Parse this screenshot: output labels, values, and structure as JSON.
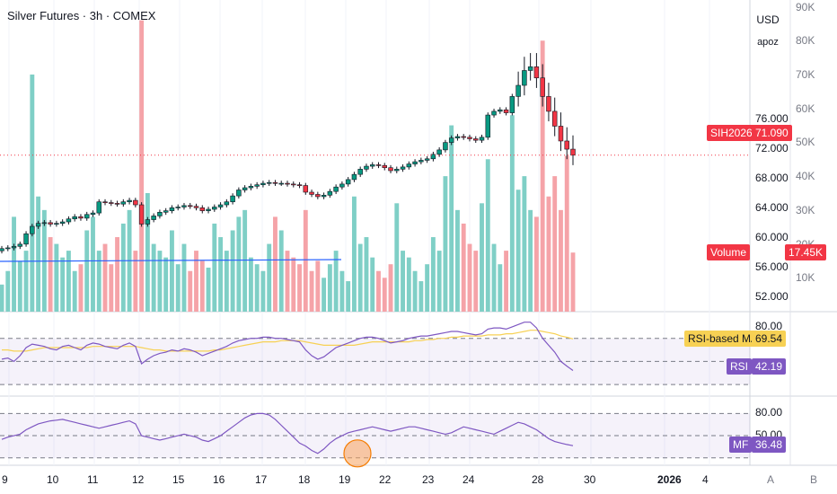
{
  "chart_title": "Silver Futures · 3h · COMEX",
  "currency_label": "USD",
  "scale_label": "apoz",
  "symbol_tag": "SIH2026",
  "last_price": "71.090",
  "volume_tag": "Volume",
  "volume_value": "17.45K",
  "rsi_ma_tag": "RSI-based MA",
  "rsi_ma_value": "69.54",
  "rsi_tag": "RSI",
  "rsi_value": "42.19",
  "mf_tag": "MF",
  "mf_value": "36.48",
  "price_ticks": [
    "76.000",
    "72.000",
    "68.000",
    "64.000",
    "60.000",
    "56.000",
    "52.000"
  ],
  "volume_ticks": [
    "90K",
    "80K",
    "70K",
    "60K",
    "50K",
    "40K",
    "30K",
    "20K",
    "10K"
  ],
  "rsi_ticks": [
    "80.00"
  ],
  "mf_ticks": [
    "80.00",
    "50.00"
  ],
  "x_ticks": [
    "9",
    "10",
    "11",
    "12",
    "15",
    "16",
    "17",
    "18",
    "19",
    "22",
    "23",
    "24",
    "28",
    "30",
    "2026",
    "4"
  ],
  "axis_buttons": [
    "A",
    "B"
  ],
  "colors": {
    "up": "#089981",
    "down": "#f23645",
    "up_vol": "#7fcfc6",
    "down_vol": "#f5a3a8",
    "rsi": "#7e57c2",
    "rsi_ma": "#f7d154",
    "trend": "#2962ff",
    "price_line": "#f23645"
  },
  "chart_data": {
    "type": "candlestick",
    "price_ylim": [
      50,
      92
    ],
    "volume_ylim": [
      0,
      92000
    ],
    "candles_close": [
      58.5,
      58.6,
      58.8,
      59.1,
      60.5,
      61.5,
      61.9,
      62.0,
      61.8,
      61.9,
      62.1,
      62.5,
      62.8,
      62.6,
      63.1,
      63.3,
      64.8,
      64.7,
      64.6,
      64.5,
      64.8,
      65.0,
      64.4,
      61.8,
      62.4,
      62.9,
      63.4,
      63.6,
      64.0,
      64.1,
      64.3,
      64.2,
      64.0,
      63.6,
      63.8,
      64.1,
      64.4,
      64.8,
      65.6,
      66.4,
      66.7,
      66.9,
      67.1,
      67.3,
      67.4,
      67.3,
      67.3,
      67.2,
      67.1,
      67.0,
      66.1,
      65.8,
      65.5,
      65.7,
      66.2,
      66.8,
      67.2,
      67.8,
      68.5,
      69.2,
      69.6,
      69.8,
      69.7,
      69.4,
      69.0,
      69.2,
      69.5,
      69.9,
      70.2,
      70.4,
      70.6,
      71.2,
      71.8,
      72.8,
      73.4,
      73.6,
      73.5,
      73.3,
      73.1,
      73.5,
      76.5,
      77.0,
      77.2,
      76.8,
      79.0,
      80.5,
      82.5,
      83.0,
      81.5,
      79.0,
      77.0,
      75.0,
      73.0,
      71.9,
      71.09
    ],
    "volume": [
      8000,
      12000,
      28000,
      15000,
      18000,
      70000,
      34000,
      30000,
      22000,
      20000,
      16000,
      18000,
      12000,
      14000,
      24000,
      28000,
      18000,
      20000,
      14000,
      22000,
      26000,
      30000,
      18000,
      86000,
      35000,
      20000,
      18000,
      16000,
      24000,
      14000,
      20000,
      12000,
      18000,
      15000,
      13000,
      26000,
      22000,
      18000,
      24000,
      28000,
      30000,
      16000,
      14000,
      12000,
      20000,
      28000,
      24000,
      18000,
      16000,
      14000,
      30000,
      12000,
      15000,
      10000,
      14000,
      18000,
      12000,
      9000,
      34000,
      20000,
      22000,
      16000,
      12000,
      10000,
      14000,
      32000,
      18000,
      16000,
      12000,
      9000,
      14000,
      22000,
      18000,
      40000,
      55000,
      30000,
      26000,
      20000,
      18000,
      32000,
      45000,
      20000,
      14000,
      18000,
      58000,
      36000,
      40000,
      30000,
      28000,
      80000,
      34000,
      40000,
      30000,
      46000,
      17450
    ],
    "rsi": [
      52,
      53,
      50,
      55,
      62,
      65,
      64,
      63,
      61,
      60,
      63,
      64,
      62,
      60,
      64,
      66,
      65,
      63,
      62,
      61,
      64,
      66,
      63,
      48,
      52,
      55,
      57,
      58,
      60,
      59,
      61,
      60,
      58,
      55,
      57,
      59,
      61,
      63,
      66,
      68,
      69,
      70,
      70,
      71,
      71,
      70,
      70,
      69,
      68,
      67,
      60,
      55,
      52,
      54,
      58,
      62,
      64,
      66,
      68,
      70,
      71,
      71,
      70,
      68,
      66,
      67,
      68,
      70,
      71,
      72,
      72,
      73,
      74,
      75,
      76,
      76,
      75,
      74,
      73,
      74,
      78,
      79,
      79,
      78,
      80,
      82,
      84,
      84,
      79,
      70,
      64,
      58,
      50,
      46,
      42.19
    ],
    "rsi_ma": [
      60,
      60,
      59,
      59,
      59,
      60,
      61,
      62,
      62,
      62,
      62,
      62,
      62,
      62,
      62,
      63,
      63,
      63,
      63,
      63,
      63,
      63,
      63,
      62,
      61,
      60,
      60,
      59,
      59,
      59,
      59,
      59,
      59,
      59,
      59,
      60,
      60,
      61,
      62,
      63,
      64,
      65,
      66,
      67,
      67,
      67,
      68,
      68,
      68,
      68,
      67,
      66,
      65,
      64,
      64,
      64,
      64,
      64,
      64,
      65,
      66,
      67,
      67,
      67,
      67,
      67,
      67,
      67,
      68,
      68,
      69,
      69,
      70,
      70,
      71,
      71,
      72,
      72,
      72,
      72,
      73,
      73,
      73,
      74,
      74,
      75,
      76,
      77,
      77,
      76,
      75,
      74,
      72,
      71,
      69.54
    ],
    "mf": [
      45,
      48,
      50,
      52,
      58,
      62,
      66,
      68,
      70,
      71,
      72,
      70,
      68,
      66,
      64,
      62,
      60,
      62,
      64,
      66,
      68,
      70,
      66,
      50,
      48,
      46,
      44,
      46,
      48,
      50,
      52,
      50,
      48,
      44,
      42,
      46,
      50,
      56,
      62,
      68,
      74,
      78,
      80,
      80,
      78,
      72,
      64,
      56,
      48,
      40,
      36,
      30,
      26,
      32,
      40,
      46,
      50,
      54,
      56,
      58,
      60,
      62,
      60,
      58,
      56,
      58,
      60,
      62,
      62,
      60,
      58,
      56,
      54,
      52,
      54,
      58,
      62,
      60,
      58,
      56,
      54,
      52,
      56,
      60,
      64,
      68,
      66,
      62,
      58,
      52,
      46,
      42,
      40,
      38,
      36.48
    ]
  }
}
